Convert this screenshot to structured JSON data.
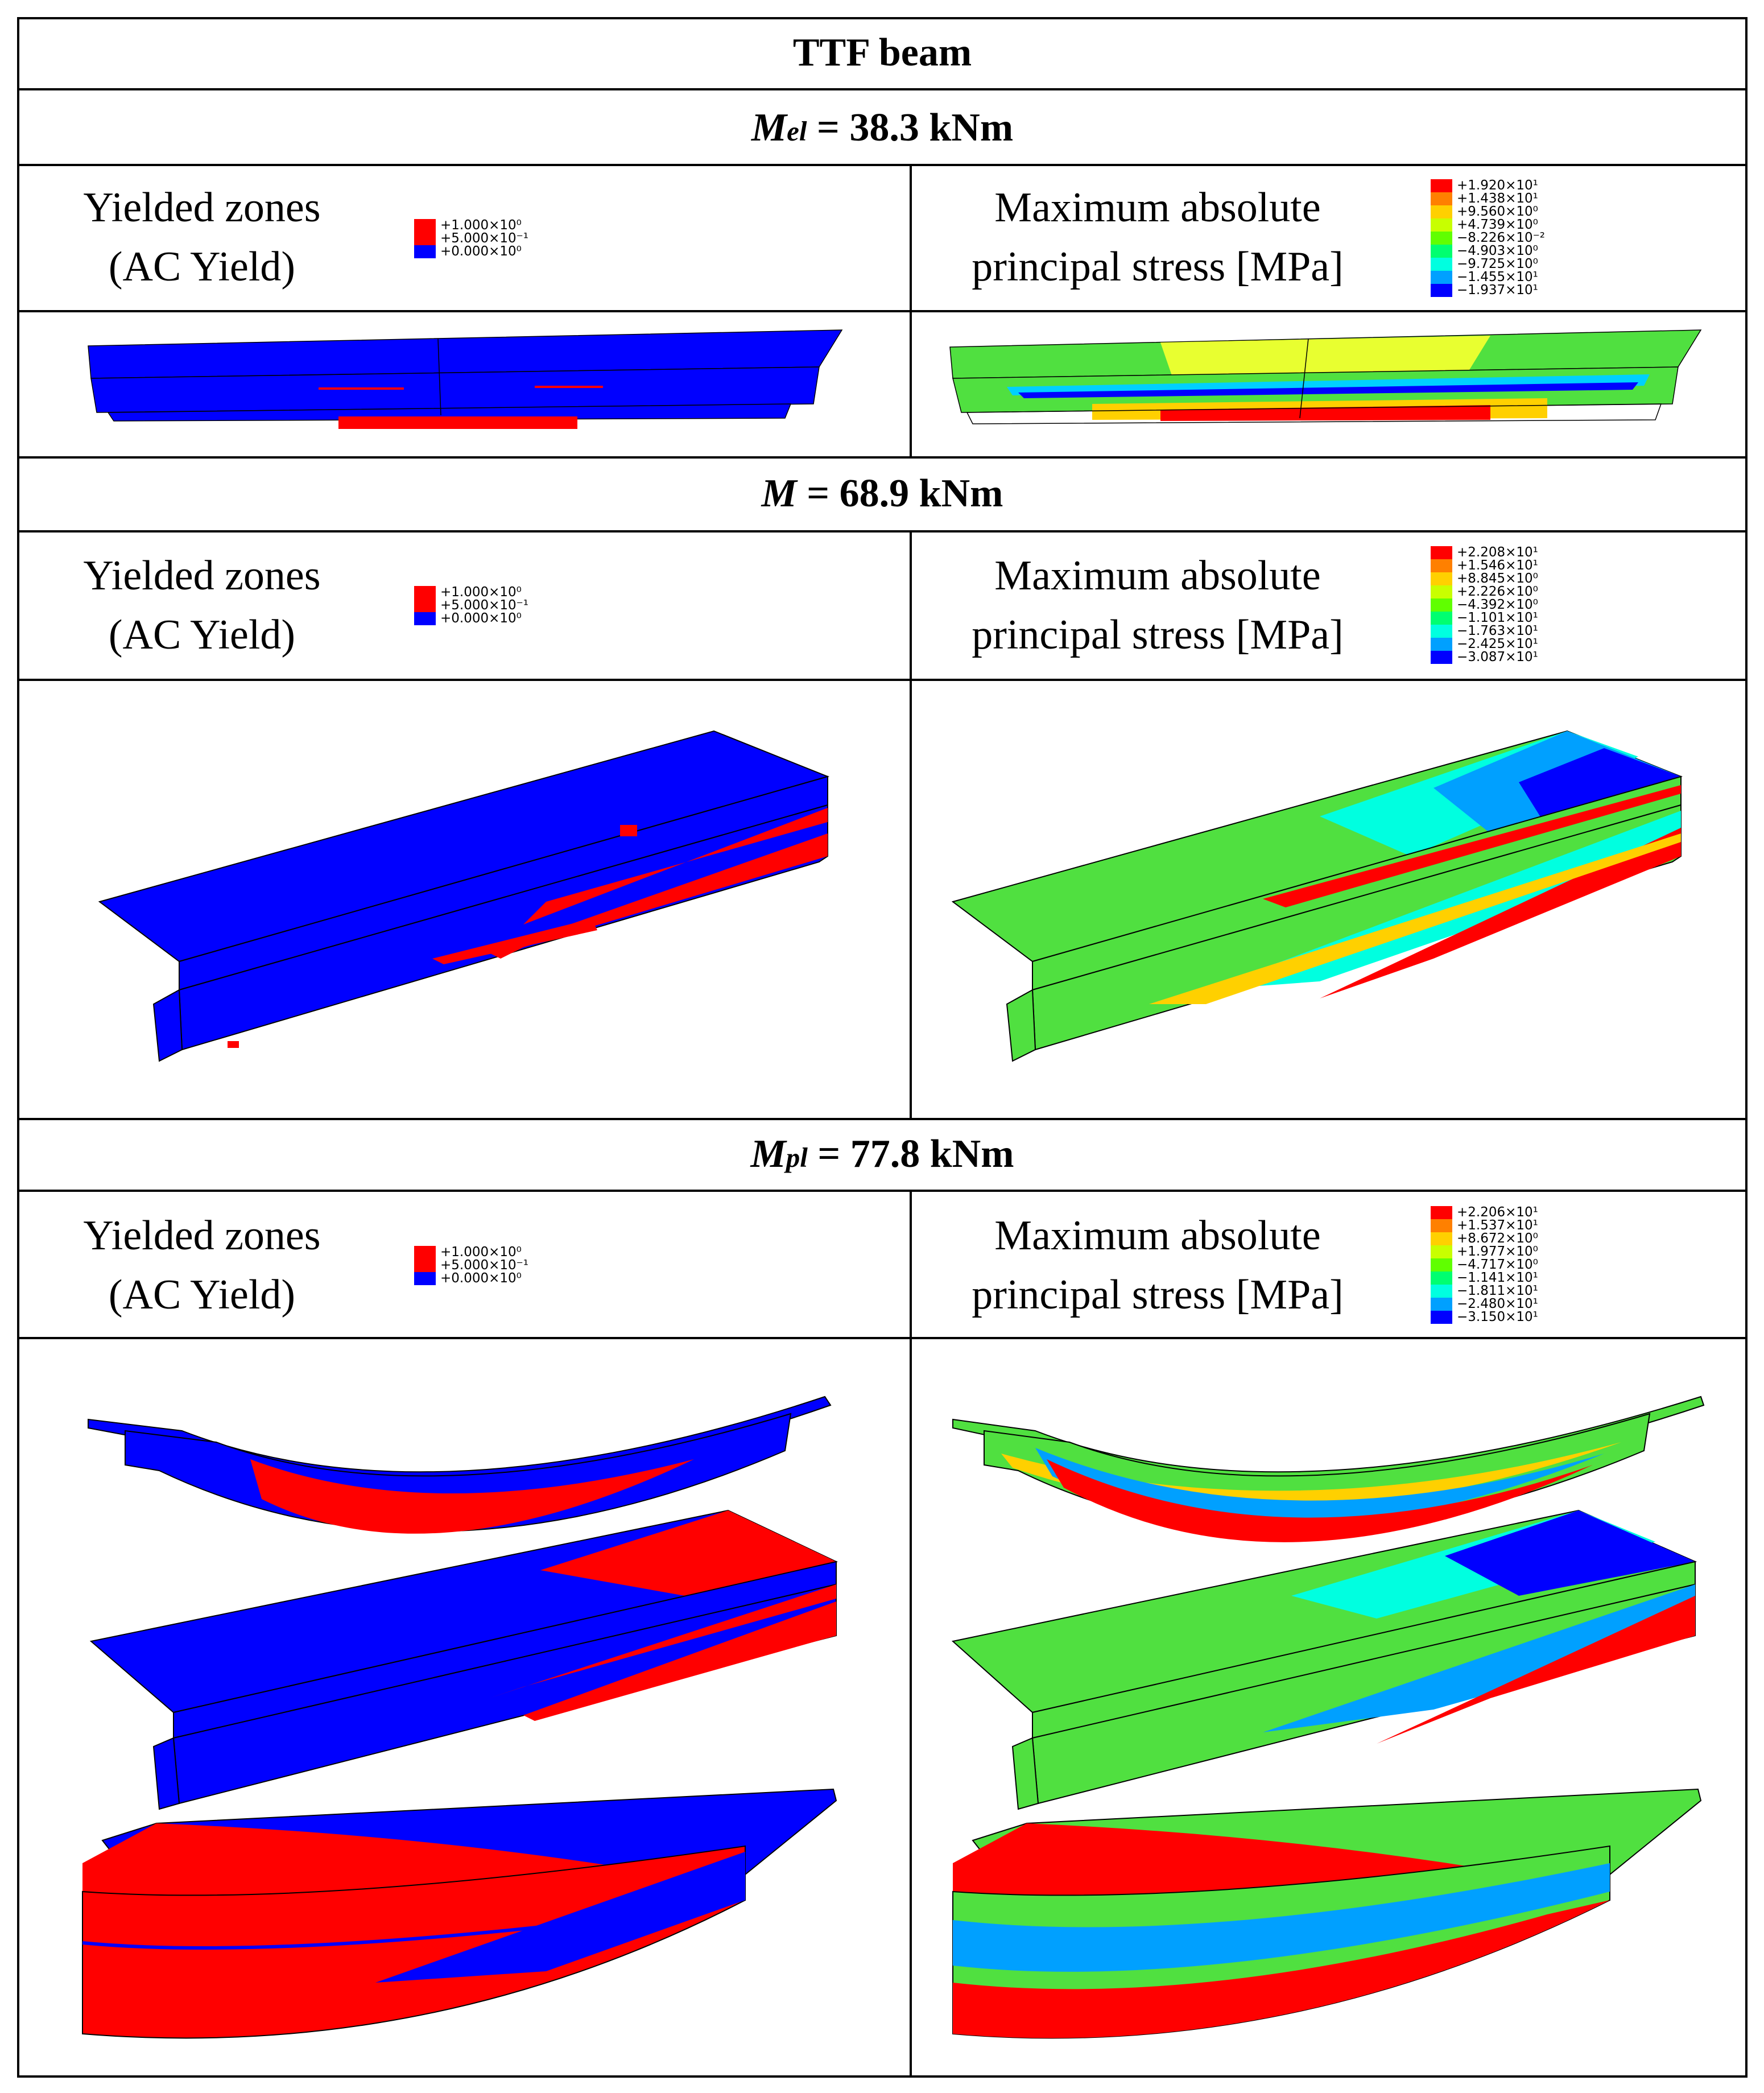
{
  "table_title": "TTF beam",
  "sections": [
    {
      "moment_symbol": "M",
      "moment_subscript": "el",
      "moment_value": " = 38.3 kNm",
      "left_heading": [
        "Yielded zones",
        "(AC Yield)"
      ],
      "right_heading": [
        "Maximum absolute",
        "principal stress [MPa]"
      ],
      "yield_legend": [
        {
          "label": "+1.000×10⁰",
          "color": "#ff0000"
        },
        {
          "label": "+5.000×10⁻¹",
          "color": "#ff0000"
        },
        {
          "label": "+0.000×10⁰",
          "color": "#0000ff"
        }
      ],
      "stress_legend": [
        {
          "label": "+1.920×10¹",
          "color": "#ff0000"
        },
        {
          "label": "+1.438×10¹",
          "color": "#ff8000"
        },
        {
          "label": "+9.560×10⁰",
          "color": "#ffd000"
        },
        {
          "label": "+4.739×10⁰",
          "color": "#c8ff00"
        },
        {
          "label": "−8.226×10⁻²",
          "color": "#60ff00"
        },
        {
          "label": "−4.903×10⁰",
          "color": "#00ff70"
        },
        {
          "label": "−9.725×10⁰",
          "color": "#00ffe0"
        },
        {
          "label": "−1.455×10¹",
          "color": "#00a0ff"
        },
        {
          "label": "−1.937×10¹",
          "color": "#0000ff"
        }
      ]
    },
    {
      "moment_symbol": "M",
      "moment_subscript": "",
      "moment_value": " = 68.9 kNm",
      "left_heading": [
        "Yielded zones",
        "(AC Yield)"
      ],
      "right_heading": [
        "Maximum absolute",
        "principal stress [MPa]"
      ],
      "yield_legend": [
        {
          "label": "+1.000×10⁰",
          "color": "#ff0000"
        },
        {
          "label": "+5.000×10⁻¹",
          "color": "#ff0000"
        },
        {
          "label": "+0.000×10⁰",
          "color": "#0000ff"
        }
      ],
      "stress_legend": [
        {
          "label": "+2.208×10¹",
          "color": "#ff0000"
        },
        {
          "label": "+1.546×10¹",
          "color": "#ff8000"
        },
        {
          "label": "+8.845×10⁰",
          "color": "#ffd000"
        },
        {
          "label": "+2.226×10⁰",
          "color": "#c8ff00"
        },
        {
          "label": "−4.392×10⁰",
          "color": "#60ff00"
        },
        {
          "label": "−1.101×10¹",
          "color": "#00ff70"
        },
        {
          "label": "−1.763×10¹",
          "color": "#00ffe0"
        },
        {
          "label": "−2.425×10¹",
          "color": "#00a0ff"
        },
        {
          "label": "−3.087×10¹",
          "color": "#0000ff"
        }
      ]
    },
    {
      "moment_symbol": "M",
      "moment_subscript": "pl",
      "moment_value": " = 77.8 kNm",
      "left_heading": [
        "Yielded zones",
        "(AC Yield)"
      ],
      "right_heading": [
        "Maximum absolute",
        "principal stress [MPa]"
      ],
      "yield_legend": [
        {
          "label": "+1.000×10⁰",
          "color": "#ff0000"
        },
        {
          "label": "+5.000×10⁻¹",
          "color": "#ff0000"
        },
        {
          "label": "+0.000×10⁰",
          "color": "#0000ff"
        }
      ],
      "stress_legend": [
        {
          "label": "+2.206×10¹",
          "color": "#ff0000"
        },
        {
          "label": "+1.537×10¹",
          "color": "#ff8000"
        },
        {
          "label": "+8.672×10⁰",
          "color": "#ffd000"
        },
        {
          "label": "+1.977×10⁰",
          "color": "#c8ff00"
        },
        {
          "label": "−4.717×10⁰",
          "color": "#60ff00"
        },
        {
          "label": "−1.141×10¹",
          "color": "#00ff70"
        },
        {
          "label": "−1.811×10¹",
          "color": "#00ffe0"
        },
        {
          "label": "−2.480×10¹",
          "color": "#00a0ff"
        },
        {
          "label": "−3.150×10¹",
          "color": "#0000ff"
        }
      ]
    }
  ],
  "colors": {
    "yielded": "#ff0000",
    "elastic": "#0000ff",
    "neutral": "#50e040",
    "low": "#ffd000"
  }
}
